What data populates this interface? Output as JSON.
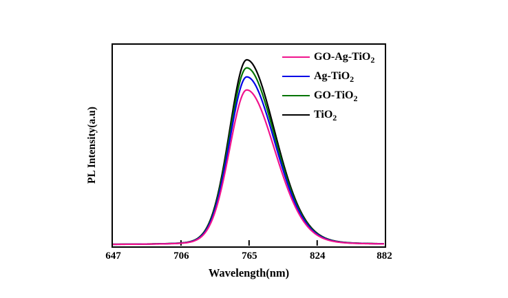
{
  "figure": {
    "background": "#ffffff",
    "axis_color": "#000000"
  },
  "chart_data": {
    "type": "line",
    "title": "",
    "xlabel": "Wavelength(nm)",
    "ylabel": "PL Intensity(a.u)",
    "xlim": [
      647,
      882
    ],
    "ylim": [
      0,
      1
    ],
    "x_ticks": [
      647,
      706,
      765,
      824,
      882
    ],
    "grid": false,
    "legend_position": "upper-right-inside",
    "peak_model": {
      "center_nm": 763,
      "sigma_left_nm": 15.5,
      "sigma_right_nm": 25,
      "lorentz_fraction": 0.12,
      "baseline": 0.005
    },
    "series": [
      {
        "name": "GO-Ag-TiO2",
        "label_base": "GO-Ag-TiO",
        "label_sub": "2",
        "color": "#F0138C",
        "peak_height": 0.77
      },
      {
        "name": "Ag-TiO2",
        "label_base": "Ag-TiO",
        "label_sub": "2",
        "color": "#0000E6",
        "peak_height": 0.835
      },
      {
        "name": "GO-TiO2",
        "label_base": "GO-TiO",
        "label_sub": "2",
        "color": "#027402",
        "peak_height": 0.88
      },
      {
        "name": "TiO2",
        "label_base": "TiO",
        "label_sub": "2",
        "color": "#000000",
        "peak_height": 0.92
      }
    ]
  }
}
